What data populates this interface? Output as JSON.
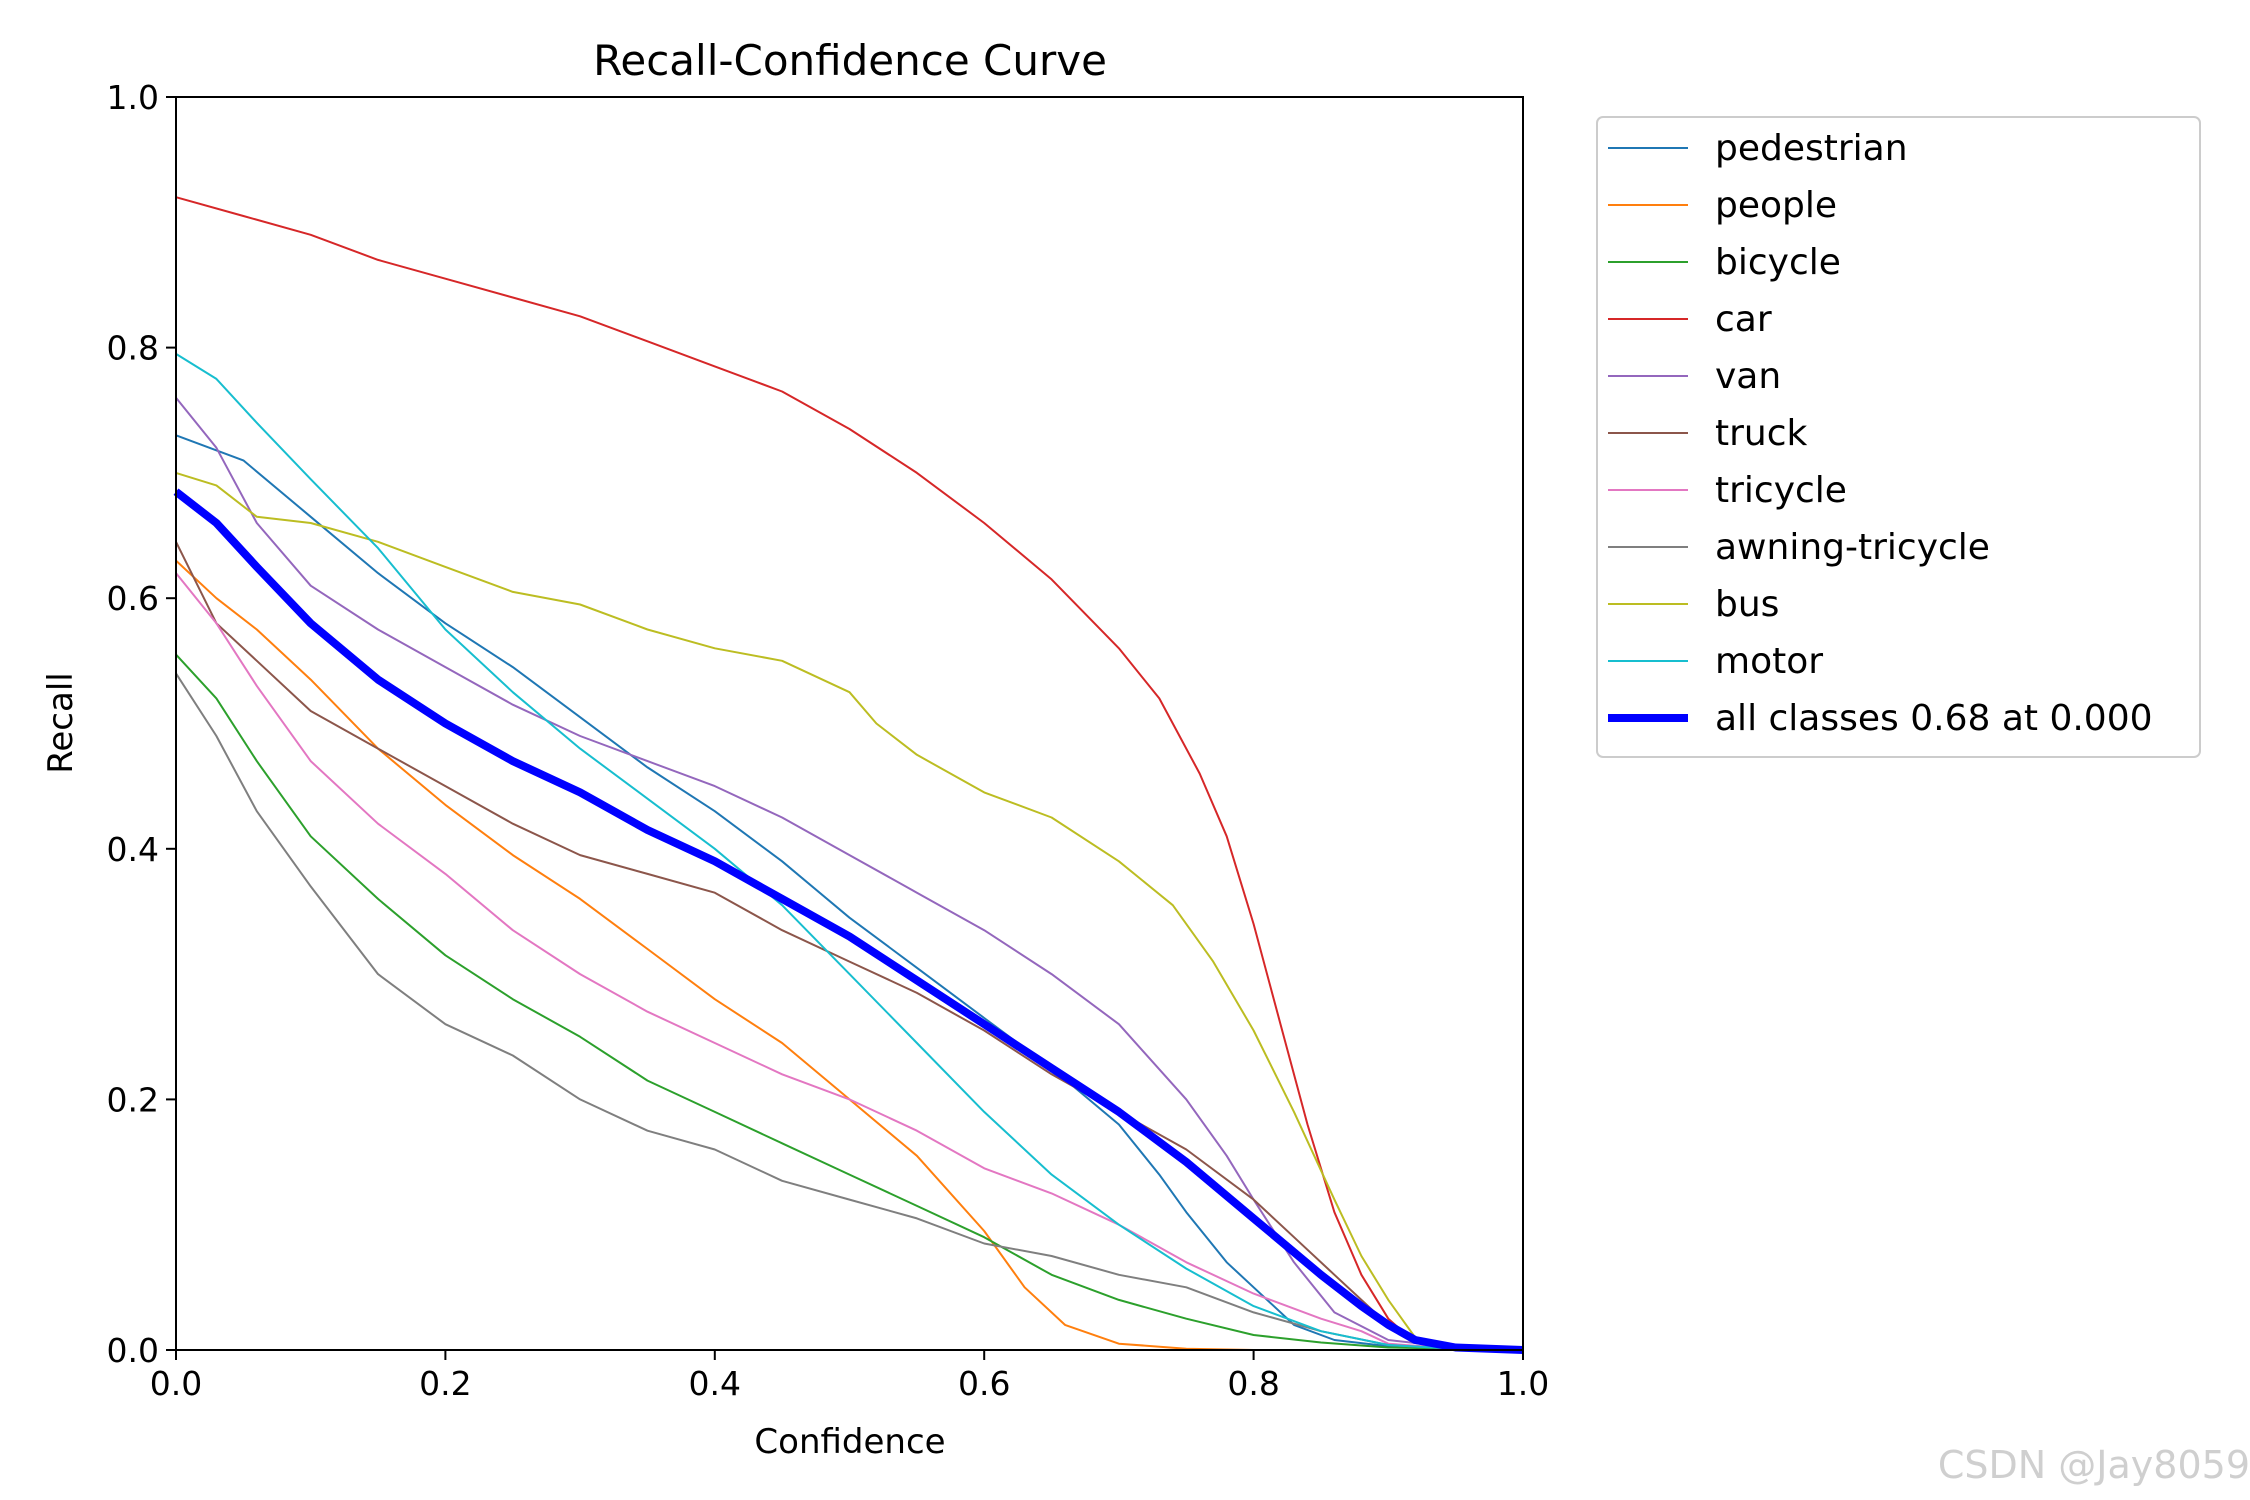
{
  "chart_data": {
    "type": "line",
    "title": "Recall-Confidence Curve",
    "xlabel": "Confidence",
    "ylabel": "Recall",
    "xlim": [
      0,
      1
    ],
    "ylim": [
      0,
      1
    ],
    "xticks": [
      "0.0",
      "0.2",
      "0.4",
      "0.6",
      "0.8",
      "1.0"
    ],
    "yticks": [
      "0.0",
      "0.2",
      "0.4",
      "0.6",
      "0.8",
      "1.0"
    ],
    "legend_position": "outside-right-top",
    "grid": false,
    "series": [
      {
        "name": "pedestrian",
        "color": "#1f77b4",
        "width": 1,
        "points": [
          [
            0,
            0.73
          ],
          [
            0.05,
            0.71
          ],
          [
            0.1,
            0.665
          ],
          [
            0.15,
            0.62
          ],
          [
            0.2,
            0.58
          ],
          [
            0.25,
            0.545
          ],
          [
            0.3,
            0.505
          ],
          [
            0.35,
            0.465
          ],
          [
            0.4,
            0.43
          ],
          [
            0.45,
            0.39
          ],
          [
            0.5,
            0.345
          ],
          [
            0.55,
            0.305
          ],
          [
            0.6,
            0.265
          ],
          [
            0.65,
            0.225
          ],
          [
            0.7,
            0.18
          ],
          [
            0.73,
            0.14
          ],
          [
            0.75,
            0.11
          ],
          [
            0.78,
            0.07
          ],
          [
            0.8,
            0.05
          ],
          [
            0.83,
            0.02
          ],
          [
            0.86,
            0.008
          ],
          [
            0.9,
            0.003
          ],
          [
            0.95,
            0.001
          ],
          [
            1.0,
            0.0
          ]
        ]
      },
      {
        "name": "people",
        "color": "#ff7f0e",
        "width": 1,
        "points": [
          [
            0,
            0.63
          ],
          [
            0.03,
            0.6
          ],
          [
            0.06,
            0.575
          ],
          [
            0.1,
            0.535
          ],
          [
            0.15,
            0.48
          ],
          [
            0.2,
            0.435
          ],
          [
            0.25,
            0.395
          ],
          [
            0.3,
            0.36
          ],
          [
            0.35,
            0.32
          ],
          [
            0.4,
            0.28
          ],
          [
            0.45,
            0.245
          ],
          [
            0.5,
            0.2
          ],
          [
            0.55,
            0.155
          ],
          [
            0.6,
            0.095
          ],
          [
            0.63,
            0.05
          ],
          [
            0.66,
            0.02
          ],
          [
            0.7,
            0.005
          ],
          [
            0.75,
            0.001
          ],
          [
            0.8,
            0.0
          ],
          [
            1.0,
            0.0
          ]
        ]
      },
      {
        "name": "bicycle",
        "color": "#2ca02c",
        "width": 1,
        "points": [
          [
            0,
            0.555
          ],
          [
            0.03,
            0.52
          ],
          [
            0.06,
            0.47
          ],
          [
            0.1,
            0.41
          ],
          [
            0.15,
            0.36
          ],
          [
            0.2,
            0.315
          ],
          [
            0.25,
            0.28
          ],
          [
            0.3,
            0.25
          ],
          [
            0.35,
            0.215
          ],
          [
            0.4,
            0.19
          ],
          [
            0.45,
            0.165
          ],
          [
            0.5,
            0.14
          ],
          [
            0.55,
            0.115
          ],
          [
            0.6,
            0.09
          ],
          [
            0.65,
            0.06
          ],
          [
            0.7,
            0.04
          ],
          [
            0.75,
            0.025
          ],
          [
            0.8,
            0.012
          ],
          [
            0.85,
            0.006
          ],
          [
            0.9,
            0.002
          ],
          [
            1.0,
            0.0
          ]
        ]
      },
      {
        "name": "car",
        "color": "#d62728",
        "width": 1,
        "points": [
          [
            0,
            0.92
          ],
          [
            0.05,
            0.905
          ],
          [
            0.1,
            0.89
          ],
          [
            0.15,
            0.87
          ],
          [
            0.2,
            0.855
          ],
          [
            0.25,
            0.84
          ],
          [
            0.3,
            0.825
          ],
          [
            0.35,
            0.805
          ],
          [
            0.4,
            0.785
          ],
          [
            0.45,
            0.765
          ],
          [
            0.5,
            0.735
          ],
          [
            0.55,
            0.7
          ],
          [
            0.6,
            0.66
          ],
          [
            0.65,
            0.615
          ],
          [
            0.7,
            0.56
          ],
          [
            0.73,
            0.52
          ],
          [
            0.76,
            0.46
          ],
          [
            0.78,
            0.41
          ],
          [
            0.8,
            0.34
          ],
          [
            0.82,
            0.26
          ],
          [
            0.84,
            0.18
          ],
          [
            0.86,
            0.11
          ],
          [
            0.88,
            0.06
          ],
          [
            0.9,
            0.025
          ],
          [
            0.92,
            0.006
          ],
          [
            0.95,
            0.002
          ],
          [
            1.0,
            0.0
          ]
        ]
      },
      {
        "name": "van",
        "color": "#9467bd",
        "width": 1,
        "points": [
          [
            0,
            0.76
          ],
          [
            0.03,
            0.72
          ],
          [
            0.06,
            0.66
          ],
          [
            0.1,
            0.61
          ],
          [
            0.15,
            0.575
          ],
          [
            0.2,
            0.545
          ],
          [
            0.25,
            0.515
          ],
          [
            0.3,
            0.49
          ],
          [
            0.35,
            0.47
          ],
          [
            0.4,
            0.45
          ],
          [
            0.45,
            0.425
          ],
          [
            0.5,
            0.395
          ],
          [
            0.55,
            0.365
          ],
          [
            0.6,
            0.335
          ],
          [
            0.65,
            0.3
          ],
          [
            0.7,
            0.26
          ],
          [
            0.75,
            0.2
          ],
          [
            0.78,
            0.155
          ],
          [
            0.8,
            0.12
          ],
          [
            0.83,
            0.07
          ],
          [
            0.86,
            0.03
          ],
          [
            0.9,
            0.008
          ],
          [
            0.95,
            0.002
          ],
          [
            1.0,
            0.0
          ]
        ]
      },
      {
        "name": "truck",
        "color": "#8c564b",
        "width": 1,
        "points": [
          [
            0,
            0.645
          ],
          [
            0.03,
            0.58
          ],
          [
            0.06,
            0.55
          ],
          [
            0.1,
            0.51
          ],
          [
            0.15,
            0.48
          ],
          [
            0.2,
            0.45
          ],
          [
            0.25,
            0.42
          ],
          [
            0.3,
            0.395
          ],
          [
            0.35,
            0.38
          ],
          [
            0.4,
            0.365
          ],
          [
            0.45,
            0.335
          ],
          [
            0.5,
            0.31
          ],
          [
            0.55,
            0.285
          ],
          [
            0.6,
            0.255
          ],
          [
            0.65,
            0.22
          ],
          [
            0.7,
            0.19
          ],
          [
            0.75,
            0.16
          ],
          [
            0.8,
            0.12
          ],
          [
            0.83,
            0.09
          ],
          [
            0.86,
            0.06
          ],
          [
            0.88,
            0.04
          ],
          [
            0.9,
            0.02
          ],
          [
            0.93,
            0.005
          ],
          [
            0.96,
            0.001
          ],
          [
            1.0,
            0.0
          ]
        ]
      },
      {
        "name": "tricycle",
        "color": "#e377c2",
        "width": 1,
        "points": [
          [
            0,
            0.62
          ],
          [
            0.03,
            0.58
          ],
          [
            0.06,
            0.53
          ],
          [
            0.1,
            0.47
          ],
          [
            0.15,
            0.42
          ],
          [
            0.2,
            0.38
          ],
          [
            0.25,
            0.335
          ],
          [
            0.3,
            0.3
          ],
          [
            0.35,
            0.27
          ],
          [
            0.4,
            0.245
          ],
          [
            0.45,
            0.22
          ],
          [
            0.5,
            0.2
          ],
          [
            0.55,
            0.175
          ],
          [
            0.6,
            0.145
          ],
          [
            0.65,
            0.125
          ],
          [
            0.7,
            0.1
          ],
          [
            0.75,
            0.07
          ],
          [
            0.8,
            0.045
          ],
          [
            0.85,
            0.025
          ],
          [
            0.88,
            0.015
          ],
          [
            0.9,
            0.005
          ],
          [
            0.95,
            0.001
          ],
          [
            1.0,
            0.0
          ]
        ]
      },
      {
        "name": "awning-tricycle",
        "color": "#7f7f7f",
        "width": 1,
        "points": [
          [
            0,
            0.54
          ],
          [
            0.03,
            0.49
          ],
          [
            0.06,
            0.43
          ],
          [
            0.1,
            0.37
          ],
          [
            0.15,
            0.3
          ],
          [
            0.2,
            0.26
          ],
          [
            0.25,
            0.235
          ],
          [
            0.3,
            0.2
          ],
          [
            0.35,
            0.175
          ],
          [
            0.4,
            0.16
          ],
          [
            0.45,
            0.135
          ],
          [
            0.5,
            0.12
          ],
          [
            0.55,
            0.105
          ],
          [
            0.6,
            0.085
          ],
          [
            0.65,
            0.075
          ],
          [
            0.7,
            0.06
          ],
          [
            0.75,
            0.05
          ],
          [
            0.8,
            0.03
          ],
          [
            0.85,
            0.015
          ],
          [
            0.9,
            0.004
          ],
          [
            0.95,
            0.001
          ],
          [
            1.0,
            0.0
          ]
        ]
      },
      {
        "name": "bus",
        "color": "#bcbd22",
        "width": 1,
        "points": [
          [
            0,
            0.7
          ],
          [
            0.03,
            0.69
          ],
          [
            0.06,
            0.665
          ],
          [
            0.1,
            0.66
          ],
          [
            0.15,
            0.645
          ],
          [
            0.2,
            0.625
          ],
          [
            0.25,
            0.605
          ],
          [
            0.3,
            0.595
          ],
          [
            0.35,
            0.575
          ],
          [
            0.4,
            0.56
          ],
          [
            0.45,
            0.55
          ],
          [
            0.5,
            0.525
          ],
          [
            0.52,
            0.5
          ],
          [
            0.55,
            0.475
          ],
          [
            0.6,
            0.445
          ],
          [
            0.65,
            0.425
          ],
          [
            0.7,
            0.39
          ],
          [
            0.74,
            0.355
          ],
          [
            0.77,
            0.31
          ],
          [
            0.8,
            0.255
          ],
          [
            0.83,
            0.19
          ],
          [
            0.86,
            0.12
          ],
          [
            0.88,
            0.075
          ],
          [
            0.9,
            0.04
          ],
          [
            0.92,
            0.01
          ],
          [
            0.95,
            0.002
          ],
          [
            1.0,
            0.0
          ]
        ]
      },
      {
        "name": "motor",
        "color": "#17becf",
        "width": 1,
        "points": [
          [
            0,
            0.795
          ],
          [
            0.03,
            0.775
          ],
          [
            0.06,
            0.74
          ],
          [
            0.1,
            0.695
          ],
          [
            0.15,
            0.64
          ],
          [
            0.2,
            0.575
          ],
          [
            0.25,
            0.525
          ],
          [
            0.3,
            0.48
          ],
          [
            0.35,
            0.44
          ],
          [
            0.4,
            0.4
          ],
          [
            0.45,
            0.355
          ],
          [
            0.5,
            0.3
          ],
          [
            0.55,
            0.245
          ],
          [
            0.6,
            0.19
          ],
          [
            0.65,
            0.14
          ],
          [
            0.7,
            0.1
          ],
          [
            0.75,
            0.065
          ],
          [
            0.8,
            0.035
          ],
          [
            0.85,
            0.015
          ],
          [
            0.9,
            0.004
          ],
          [
            0.95,
            0.001
          ],
          [
            1.0,
            0.0
          ]
        ]
      },
      {
        "name": "all classes 0.68 at 0.000",
        "color": "#0000ff",
        "width": 4,
        "points": [
          [
            0,
            0.685
          ],
          [
            0.03,
            0.66
          ],
          [
            0.06,
            0.625
          ],
          [
            0.1,
            0.58
          ],
          [
            0.15,
            0.535
          ],
          [
            0.2,
            0.5
          ],
          [
            0.25,
            0.47
          ],
          [
            0.3,
            0.445
          ],
          [
            0.35,
            0.415
          ],
          [
            0.4,
            0.39
          ],
          [
            0.45,
            0.36
          ],
          [
            0.5,
            0.33
          ],
          [
            0.55,
            0.295
          ],
          [
            0.6,
            0.26
          ],
          [
            0.65,
            0.225
          ],
          [
            0.7,
            0.19
          ],
          [
            0.75,
            0.15
          ],
          [
            0.8,
            0.105
          ],
          [
            0.85,
            0.06
          ],
          [
            0.88,
            0.035
          ],
          [
            0.9,
            0.02
          ],
          [
            0.92,
            0.008
          ],
          [
            0.95,
            0.002
          ],
          [
            1.0,
            0.0
          ]
        ]
      }
    ]
  },
  "watermark": "CSDN @Jay8059"
}
